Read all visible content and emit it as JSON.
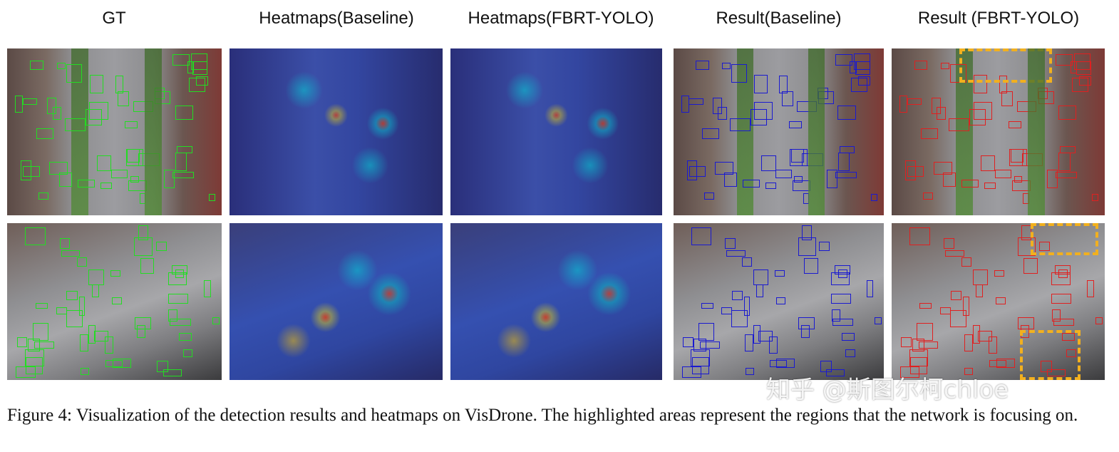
{
  "figure": {
    "column_headers": [
      "GT",
      "Heatmaps(Baseline)",
      "Heatmaps(FBRT-YOLO)",
      "Result(Baseline)",
      "Result (FBRT-YOLO)"
    ],
    "box_colors": {
      "gt": "#22dd22",
      "baseline": "#1a1ad0",
      "fbrt": "#e02020",
      "highlight": "#f2b01e"
    },
    "caption": "Figure 4: Visualization of the detection results and heatmaps on VisDrone. The highlighted areas represent the regions that the network is focusing on.",
    "watermark": "知乎 @斯图尔柯chloe"
  }
}
